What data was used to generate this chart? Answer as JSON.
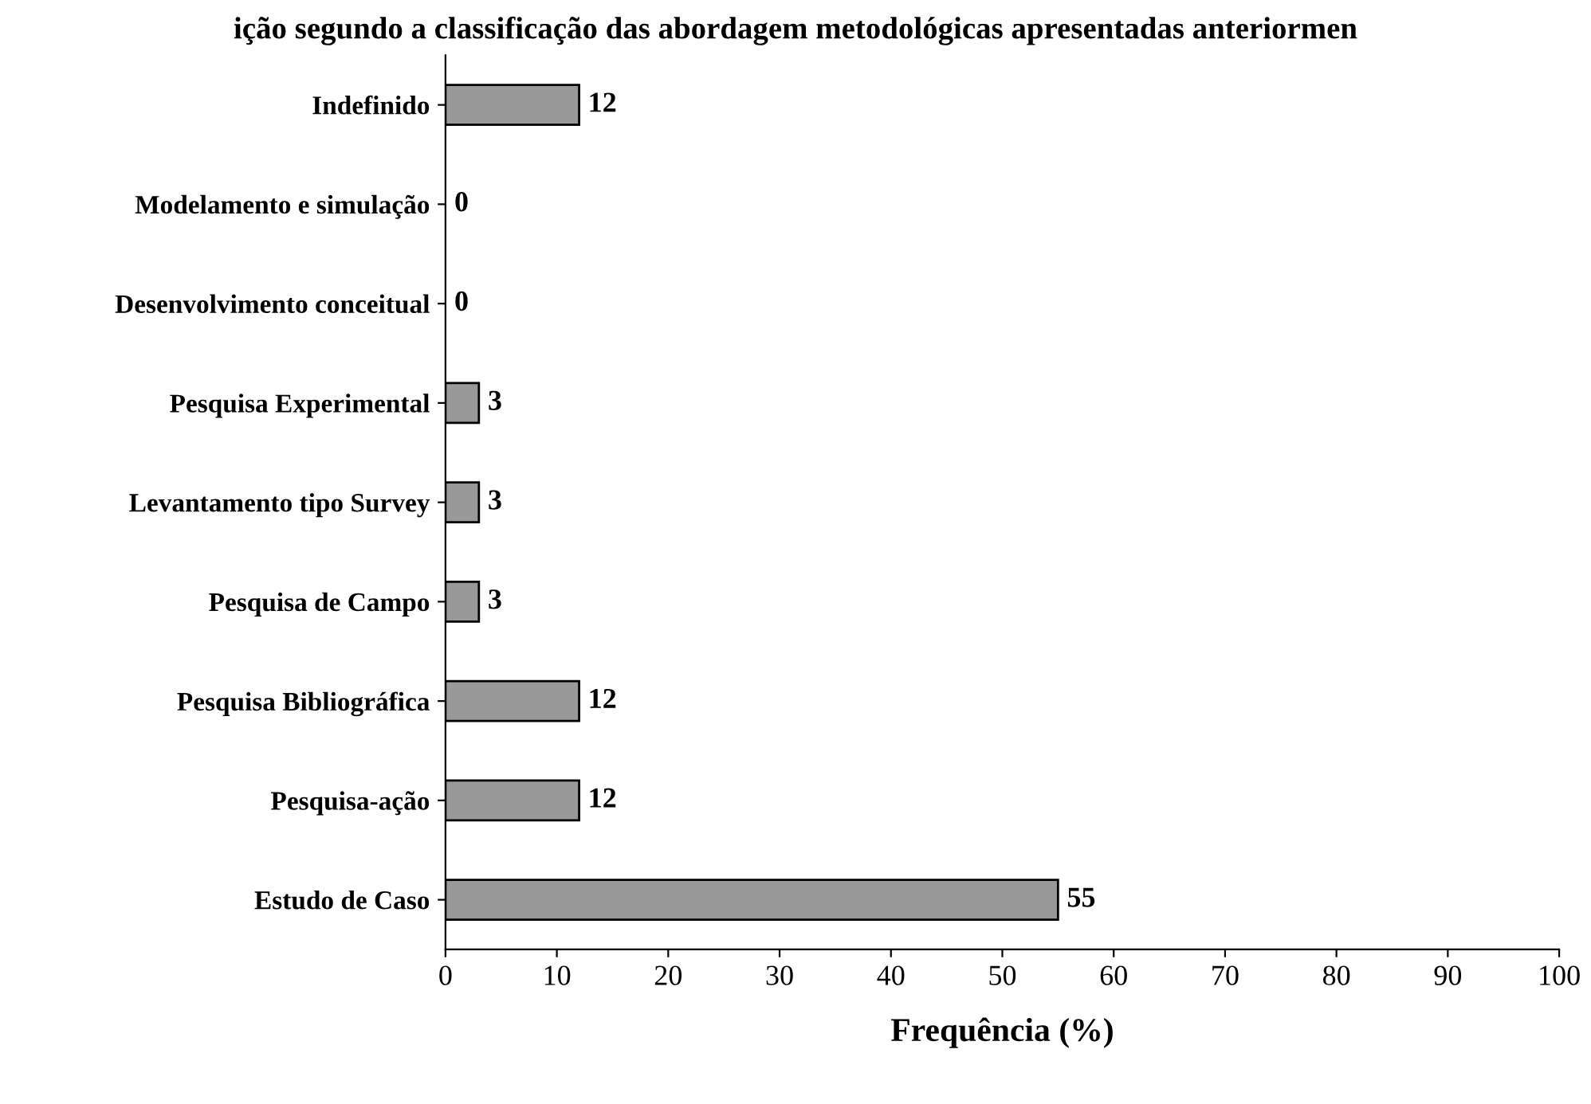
{
  "chart_data": {
    "type": "bar",
    "orientation": "horizontal",
    "title": "ição segundo a classificação das abordagem metodológicas apresentadas anteriormen",
    "categories": [
      "Indefinido",
      "Modelamento e simulação",
      "Desenvolvimento conceitual",
      "Pesquisa Experimental",
      "Levantamento tipo Survey",
      "Pesquisa de Campo",
      "Pesquisa Bibliográfica",
      "Pesquisa-ação",
      "Estudo de Caso"
    ],
    "values": [
      12,
      0,
      0,
      3,
      3,
      3,
      12,
      12,
      55
    ],
    "color": "#999999",
    "data_labels": true,
    "xlabel": "Frequência (%)",
    "xlim": [
      0,
      100
    ],
    "xticks": [
      0,
      10,
      20,
      30,
      40,
      50,
      60,
      70,
      80,
      90,
      100
    ],
    "grid": false
  }
}
